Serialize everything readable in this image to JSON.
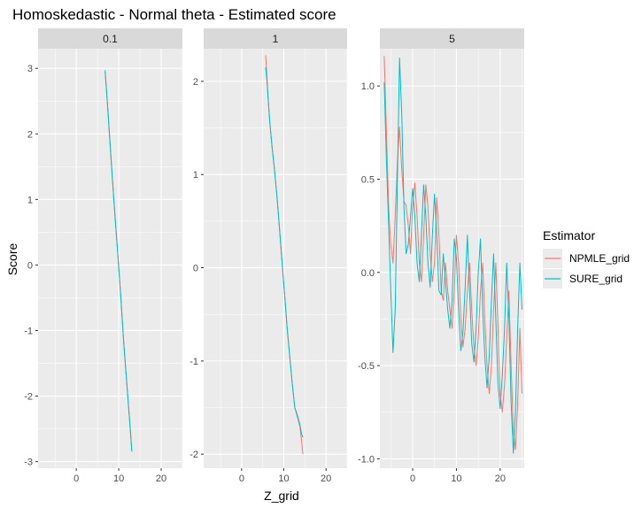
{
  "colors": {
    "npmle": "#F8766D",
    "sure": "#00BFC4",
    "panel_bg": "#EBEBEB",
    "strip_bg": "#D9D9D9",
    "grid": "#FFFFFF"
  },
  "chart_data": {
    "type": "line",
    "title": "Homoskedastic - Normal theta - Estimated score",
    "xlabel": "Z_grid",
    "ylabel": "Score",
    "grid": true,
    "legend": {
      "title": "Estimator",
      "position": "right",
      "entries": [
        "NPMLE_grid",
        "SURE_grid"
      ]
    },
    "facets": [
      {
        "label": "0.1",
        "xlim": [
          -9,
          25
        ],
        "ylim": [
          -3.1,
          3.3
        ],
        "xticks": [
          0,
          10,
          20
        ],
        "yticks": [
          -3,
          -2,
          -1,
          0,
          1,
          2,
          3
        ],
        "series": [
          {
            "name": "NPMLE_grid",
            "x": [
              6.8,
              7.5,
              8.2,
              9.0,
              9.8,
              10.5,
              11.2,
              12.0,
              12.6,
              13.1
            ],
            "y": [
              2.95,
              2.3,
              1.6,
              0.85,
              0.15,
              -0.5,
              -1.2,
              -1.9,
              -2.4,
              -2.83
            ]
          },
          {
            "name": "SURE_grid",
            "x": [
              6.8,
              7.5,
              8.2,
              9.0,
              9.8,
              10.5,
              11.2,
              12.0,
              12.6,
              13.1
            ],
            "y": [
              2.97,
              2.31,
              1.6,
              0.85,
              0.15,
              -0.5,
              -1.2,
              -1.9,
              -2.42,
              -2.85
            ]
          }
        ]
      },
      {
        "label": "1",
        "xlim": [
          -9,
          25
        ],
        "ylim": [
          -2.15,
          2.35
        ],
        "xticks": [
          0,
          10,
          20
        ],
        "yticks": [
          -2,
          -1,
          0,
          1,
          2
        ],
        "series": [
          {
            "name": "NPMLE_grid",
            "x": [
              5.7,
              6.0,
              6.3,
              6.7,
              7.2,
              7.8,
              8.4,
              9.0,
              9.6,
              10.2,
              10.8,
              11.4,
              12.0,
              12.6,
              13.2,
              13.8,
              14.2,
              14.5
            ],
            "y": [
              2.28,
              2.05,
              1.8,
              1.55,
              1.3,
              1.05,
              0.75,
              0.4,
              0.05,
              -0.3,
              -0.65,
              -0.95,
              -1.25,
              -1.5,
              -1.6,
              -1.7,
              -1.85,
              -2.0
            ]
          },
          {
            "name": "SURE_grid",
            "x": [
              5.7,
              6.0,
              6.3,
              6.7,
              7.2,
              7.8,
              8.4,
              9.0,
              9.6,
              10.2,
              10.8,
              11.4,
              12.0,
              12.6,
              13.2,
              13.8,
              14.2,
              14.5
            ],
            "y": [
              2.15,
              2.0,
              1.8,
              1.55,
              1.3,
              1.05,
              0.75,
              0.4,
              0.05,
              -0.3,
              -0.65,
              -0.95,
              -1.25,
              -1.5,
              -1.58,
              -1.68,
              -1.78,
              -1.82
            ]
          }
        ]
      },
      {
        "label": "5",
        "xlim": [
          -7.5,
          25.5
        ],
        "ylim": [
          -1.05,
          1.2
        ],
        "xticks": [
          0,
          10,
          20
        ],
        "yticks": [
          -1.0,
          -0.5,
          0.0,
          0.5,
          1.0
        ],
        "series": [
          {
            "name": "NPMLE_grid",
            "x": [
              -6.5,
              -6.0,
              -5.5,
              -5.0,
              -4.5,
              -4.0,
              -3.5,
              -3.0,
              -2.5,
              -2.0,
              -1.5,
              -1.0,
              -0.5,
              0.0,
              0.5,
              1.0,
              1.5,
              2.0,
              2.5,
              3.0,
              3.5,
              4.0,
              4.5,
              5.0,
              5.5,
              6.0,
              6.5,
              7.0,
              7.5,
              8.0,
              8.5,
              9.0,
              9.5,
              10.0,
              10.5,
              11.0,
              11.5,
              12.0,
              12.5,
              13.0,
              13.5,
              14.0,
              14.5,
              15.0,
              15.5,
              16.0,
              16.5,
              17.0,
              17.5,
              18.0,
              18.5,
              19.0,
              19.5,
              20.0,
              20.5,
              21.0,
              21.5,
              22.0,
              22.5,
              23.0,
              23.5,
              24.0,
              24.5,
              25.0
            ],
            "y": [
              1.16,
              0.75,
              0.35,
              0.15,
              0.05,
              0.3,
              0.6,
              0.78,
              0.55,
              0.38,
              0.36,
              0.25,
              0.1,
              0.35,
              0.48,
              0.3,
              0.05,
              -0.05,
              0.2,
              0.47,
              0.35,
              0.1,
              -0.05,
              0.05,
              0.4,
              0.2,
              -0.1,
              -0.15,
              0.05,
              -0.1,
              -0.2,
              -0.3,
              -0.1,
              0.2,
              0.05,
              -0.25,
              -0.4,
              -0.3,
              -0.1,
              0.05,
              -0.2,
              -0.4,
              -0.5,
              -0.35,
              -0.1,
              0.05,
              -0.25,
              -0.5,
              -0.65,
              -0.5,
              -0.2,
              0.05,
              -0.3,
              -0.65,
              -0.75,
              -0.6,
              -0.35,
              -0.1,
              -0.5,
              -0.85,
              -0.95,
              -0.7,
              -0.3,
              -0.65
            ]
          },
          {
            "name": "SURE_grid",
            "x": [
              -6.5,
              -6.0,
              -5.5,
              -5.0,
              -4.5,
              -4.0,
              -3.5,
              -3.0,
              -2.5,
              -2.0,
              -1.5,
              -1.0,
              -0.5,
              0.0,
              0.5,
              1.0,
              1.5,
              2.0,
              2.5,
              3.0,
              3.5,
              4.0,
              4.5,
              5.0,
              5.5,
              6.0,
              6.5,
              7.0,
              7.5,
              8.0,
              8.5,
              9.0,
              9.5,
              10.0,
              10.5,
              11.0,
              11.5,
              12.0,
              12.5,
              13.0,
              13.5,
              14.0,
              14.5,
              15.0,
              15.5,
              16.0,
              16.5,
              17.0,
              17.5,
              18.0,
              18.5,
              19.0,
              19.5,
              20.0,
              20.5,
              21.0,
              21.5,
              22.0,
              22.5,
              23.0,
              23.5,
              24.0,
              24.5,
              25.0
            ],
            "y": [
              1.02,
              0.6,
              0.25,
              -0.1,
              -0.43,
              -0.2,
              0.5,
              1.15,
              0.85,
              0.35,
              0.1,
              0.15,
              0.3,
              0.45,
              0.3,
              0.05,
              -0.05,
              0.2,
              0.47,
              0.3,
              0.05,
              -0.08,
              0.2,
              0.42,
              0.2,
              -0.1,
              -0.12,
              0.1,
              -0.05,
              -0.2,
              -0.3,
              -0.15,
              0.18,
              0.08,
              -0.2,
              -0.42,
              -0.32,
              -0.08,
              0.2,
              -0.1,
              -0.38,
              -0.48,
              -0.3,
              0.0,
              0.18,
              -0.2,
              -0.45,
              -0.62,
              -0.45,
              -0.15,
              0.1,
              -0.25,
              -0.6,
              -0.73,
              -0.55,
              -0.3,
              0.05,
              -0.25,
              -0.7,
              -0.97,
              -0.75,
              -0.3,
              0.05,
              -0.2
            ]
          }
        ]
      }
    ]
  }
}
